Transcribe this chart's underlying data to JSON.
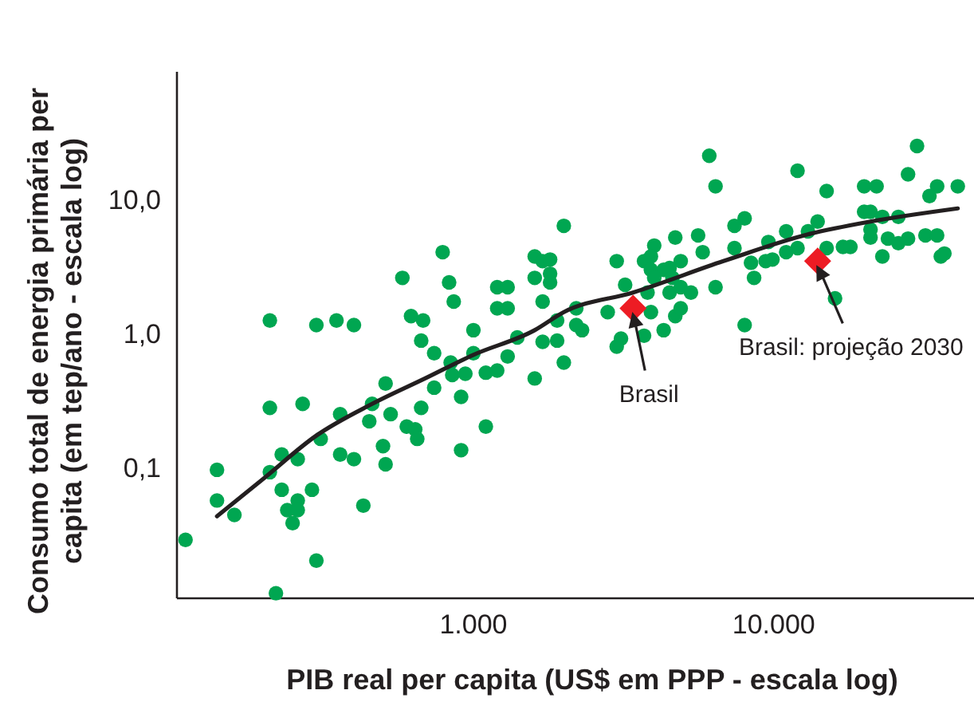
{
  "chart_data": {
    "type": "scatter",
    "xlabel": "PIB real per capita (US$ em PPP - escala log)",
    "ylabel": "Consumo total de energia primária per capita (em tep/ano - escala log)",
    "log": "xy",
    "grid": false,
    "xlim": [
      103,
      47000
    ],
    "ylim": [
      0.011,
      93
    ],
    "xticks": [
      {
        "value": 1000,
        "label": "1.000"
      },
      {
        "value": 10000,
        "label": "10.000"
      }
    ],
    "yticks": [
      {
        "value": 0.1,
        "label": "0,1"
      },
      {
        "value": 1,
        "label": "1,0"
      },
      {
        "value": 10,
        "label": "10,0"
      }
    ],
    "series": [
      {
        "color": "#00a651",
        "marker": "circle",
        "x": [
          2000,
          790,
          580,
          830,
          860,
          1600,
          1700,
          1600,
          1800,
          1800,
          1200,
          1300,
          1200,
          1300,
          1700,
          210,
          300,
          350,
          400,
          620,
          680,
          670,
          740,
          1000,
          840,
          850,
          940,
          1000,
          1100,
          910,
          1200,
          1300,
          1400,
          1600,
          1700,
          1900,
          2000,
          510,
          460,
          530,
          450,
          360,
          670,
          740,
          600,
          640,
          650,
          500,
          510,
          400,
          360,
          910,
          1100,
          270,
          210,
          310,
          260,
          230,
          210,
          140,
          140,
          160,
          110,
          230,
          290,
          240,
          260,
          260,
          250,
          430,
          300,
          220,
          6100,
          6400,
          12000,
          15000,
          30000,
          28000,
          20000,
          22000,
          35000,
          33000,
          41000,
          20000,
          21000,
          23000,
          26000,
          21000,
          21000,
          24000,
          26000,
          28000,
          32000,
          35000,
          23000,
          36000,
          37000,
          8000,
          7400,
          5600,
          4700,
          5800,
          7400,
          9600,
          11000,
          14000,
          13000,
          12000,
          11000,
          9900,
          9400,
          8400,
          8600,
          15000,
          17000,
          18000,
          4000,
          3900,
          3700,
          3000,
          4900,
          4500,
          4300,
          3900,
          4000,
          4600,
          4500,
          4900,
          5300,
          6400,
          3800,
          3200,
          2800,
          16000,
          1800,
          2200,
          8000,
          4300,
          4700,
          3900,
          3700,
          3100,
          3000,
          2300,
          2200,
          1900,
          4900
        ],
        "values": [
          6.6,
          4.2,
          2.7,
          2.5,
          1.8,
          3.9,
          3.6,
          2.7,
          2.9,
          2.5,
          2.3,
          2.3,
          1.6,
          1.6,
          1.8,
          1.3,
          1.2,
          1.3,
          1.2,
          1.4,
          1.3,
          0.92,
          0.74,
          1.1,
          0.63,
          0.51,
          0.52,
          0.74,
          0.53,
          0.35,
          0.55,
          0.7,
          0.97,
          0.48,
          0.9,
          0.92,
          0.63,
          0.44,
          0.31,
          0.26,
          0.23,
          0.26,
          0.29,
          0.41,
          0.21,
          0.2,
          0.17,
          0.15,
          0.11,
          0.12,
          0.13,
          0.14,
          0.21,
          0.31,
          0.29,
          0.17,
          0.12,
          0.13,
          0.096,
          0.1,
          0.059,
          0.046,
          0.03,
          0.071,
          0.071,
          0.05,
          0.059,
          0.05,
          0.04,
          0.054,
          0.021,
          0.012,
          22,
          13,
          17,
          12,
          26,
          16,
          13,
          13,
          13,
          11,
          13,
          8.4,
          8.4,
          7.7,
          7.7,
          6.2,
          5.4,
          5.3,
          4.9,
          5.3,
          5.6,
          5.6,
          3.9,
          3.9,
          4.1,
          7.5,
          6.6,
          5.6,
          5.4,
          4.2,
          4.5,
          5,
          6,
          7.1,
          6,
          4.5,
          4.2,
          3.7,
          3.6,
          3.5,
          2.7,
          4.5,
          4.6,
          4.6,
          4.7,
          3.9,
          3.6,
          3.6,
          3.6,
          3.2,
          3.1,
          3.1,
          2.7,
          2.7,
          2.1,
          2.3,
          2.1,
          2.3,
          2.1,
          2.4,
          1.5,
          1.9,
          3.7,
          1.6,
          1.2,
          1.1,
          1.4,
          1.5,
          1,
          0.95,
          0.83,
          1.1,
          1.2,
          1.3,
          1.6
        ]
      },
      {
        "type": "line",
        "color": "#231f20",
        "marker": "none",
        "line_style": "solid",
        "x": [
          140,
          200,
          300,
          460,
          690,
          1000,
          1600,
          2000,
          3400,
          6800,
          13000,
          21000,
          41000
        ],
        "values": [
          0.045,
          0.086,
          0.18,
          0.31,
          0.48,
          0.72,
          1.1,
          1.5,
          2.1,
          3.6,
          5.7,
          7.1,
          8.9
        ]
      },
      {
        "color": "#ed1c24",
        "marker": "diamond",
        "x": [
          3400,
          14000
        ],
        "values": [
          1.6,
          3.6
        ]
      }
    ],
    "annotations": [
      "Brasil",
      "Brasil: projeção 2030"
    ]
  }
}
